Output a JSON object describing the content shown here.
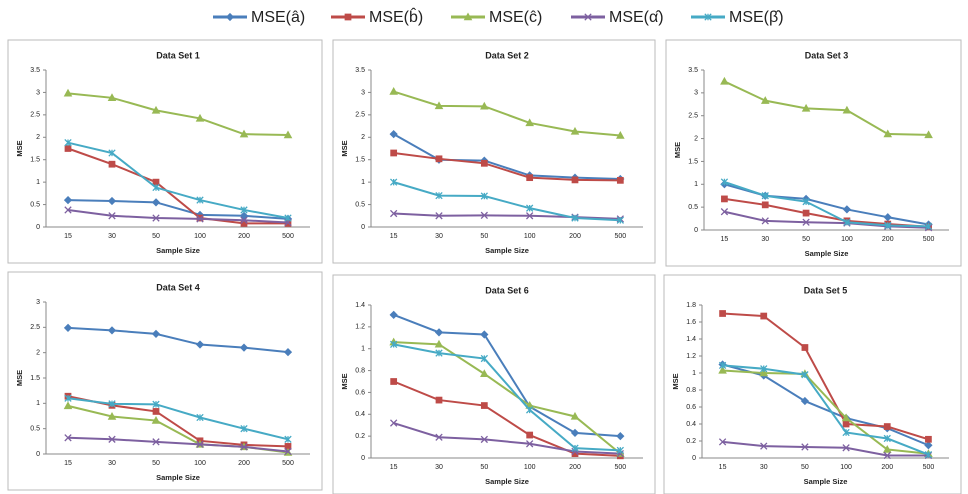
{
  "chart_data": [
    {
      "type": "line",
      "title": "Data Set 1",
      "x_label": "Sample Size",
      "y_label": "MSE",
      "categories": [
        "15",
        "30",
        "50",
        "100",
        "200",
        "500"
      ],
      "ylim": [
        0,
        3.5
      ],
      "yticks": [
        0,
        0.5,
        1,
        1.5,
        2,
        2.5,
        3,
        3.5
      ],
      "series": [
        {
          "name": "MSE(â)",
          "color": "#4a7ebb",
          "values": [
            0.6,
            0.58,
            0.55,
            0.27,
            0.25,
            0.18
          ]
        },
        {
          "name": "MSE(b̂)",
          "color": "#be4b48",
          "values": [
            1.75,
            1.4,
            1.0,
            0.2,
            0.08,
            0.08
          ]
        },
        {
          "name": "MSE(ĉ)",
          "color": "#98b954",
          "values": [
            2.98,
            2.88,
            2.6,
            2.42,
            2.07,
            2.05
          ]
        },
        {
          "name": "MSE(α̂)",
          "color": "#7d60a0",
          "values": [
            0.38,
            0.25,
            0.2,
            0.18,
            0.15,
            0.1
          ]
        },
        {
          "name": "MSE(β̂)",
          "color": "#46aac5",
          "values": [
            1.88,
            1.65,
            0.88,
            0.6,
            0.38,
            0.2
          ]
        }
      ]
    },
    {
      "type": "line",
      "title": "Data Set 2",
      "x_label": "Sample Size",
      "y_label": "MSE",
      "categories": [
        "15",
        "30",
        "50",
        "100",
        "200",
        "500"
      ],
      "ylim": [
        0,
        3.5
      ],
      "yticks": [
        0,
        0.5,
        1,
        1.5,
        2,
        2.5,
        3,
        3.5
      ],
      "series": [
        {
          "color": "#4a7ebb",
          "values": [
            2.07,
            1.5,
            1.48,
            1.15,
            1.1,
            1.07
          ]
        },
        {
          "color": "#be4b48",
          "values": [
            1.65,
            1.52,
            1.42,
            1.1,
            1.05,
            1.04
          ]
        },
        {
          "color": "#98b954",
          "values": [
            3.02,
            2.7,
            2.69,
            2.32,
            2.13,
            2.04
          ]
        },
        {
          "color": "#7d60a0",
          "values": [
            0.3,
            0.25,
            0.26,
            0.25,
            0.22,
            0.18
          ]
        },
        {
          "color": "#46aac5",
          "values": [
            1.0,
            0.7,
            0.69,
            0.42,
            0.2,
            0.15
          ]
        }
      ]
    },
    {
      "type": "line",
      "title": "Data Set 3",
      "x_label": "Sample Size",
      "y_label": "MSE",
      "categories": [
        "15",
        "30",
        "50",
        "100",
        "200",
        "500"
      ],
      "ylim": [
        0,
        3.5
      ],
      "yticks": [
        0,
        0.5,
        1,
        1.5,
        2,
        2.5,
        3,
        3.5
      ],
      "series": [
        {
          "color": "#4a7ebb",
          "values": [
            1.0,
            0.75,
            0.68,
            0.45,
            0.28,
            0.12
          ]
        },
        {
          "color": "#be4b48",
          "values": [
            0.68,
            0.55,
            0.37,
            0.2,
            0.13,
            0.07
          ]
        },
        {
          "color": "#98b954",
          "values": [
            3.25,
            2.83,
            2.66,
            2.62,
            2.1,
            2.08
          ]
        },
        {
          "color": "#7d60a0",
          "values": [
            0.4,
            0.2,
            0.17,
            0.15,
            0.08,
            0.05
          ]
        },
        {
          "color": "#46aac5",
          "values": [
            1.05,
            0.75,
            0.62,
            0.17,
            0.1,
            0.08
          ]
        }
      ]
    },
    {
      "type": "line",
      "title": "Data Set 4",
      "x_label": "Sample Size",
      "y_label": "MSE",
      "categories": [
        "15",
        "30",
        "50",
        "100",
        "200",
        "500"
      ],
      "ylim": [
        0,
        3
      ],
      "yticks": [
        0,
        0.5,
        1,
        1.5,
        2,
        2.5,
        3
      ],
      "series": [
        {
          "color": "#4a7ebb",
          "values": [
            2.49,
            2.44,
            2.37,
            2.16,
            2.1,
            2.01
          ]
        },
        {
          "color": "#be4b48",
          "values": [
            1.14,
            0.96,
            0.84,
            0.26,
            0.18,
            0.15
          ]
        },
        {
          "color": "#98b954",
          "values": [
            0.95,
            0.74,
            0.66,
            0.19,
            0.14,
            0.03
          ]
        },
        {
          "color": "#7d60a0",
          "values": [
            0.32,
            0.29,
            0.24,
            0.19,
            0.14,
            0.05
          ]
        },
        {
          "color": "#46aac5",
          "values": [
            1.1,
            0.99,
            0.98,
            0.72,
            0.5,
            0.29
          ]
        }
      ]
    },
    {
      "type": "line",
      "title": "Data Set 6",
      "x_label": "Sample Size",
      "y_label": "MSE",
      "categories": [
        "15",
        "30",
        "50",
        "100",
        "200",
        "500"
      ],
      "ylim": [
        0,
        1.4
      ],
      "yticks": [
        0,
        0.2,
        0.4,
        0.6,
        0.8,
        1,
        1.2,
        1.4
      ],
      "series": [
        {
          "color": "#4a7ebb",
          "values": [
            1.31,
            1.15,
            1.13,
            0.47,
            0.23,
            0.2
          ]
        },
        {
          "color": "#be4b48",
          "values": [
            0.7,
            0.53,
            0.48,
            0.21,
            0.04,
            0.02
          ]
        },
        {
          "color": "#98b954",
          "values": [
            1.06,
            1.04,
            0.77,
            0.48,
            0.38,
            0.04
          ]
        },
        {
          "color": "#7d60a0",
          "values": [
            0.32,
            0.19,
            0.17,
            0.13,
            0.06,
            0.04
          ]
        },
        {
          "color": "#46aac5",
          "values": [
            1.04,
            0.96,
            0.91,
            0.44,
            0.09,
            0.07
          ]
        }
      ]
    },
    {
      "type": "line",
      "title": "Data Set 5",
      "x_label": "Sample Size",
      "y_label": "MSE",
      "categories": [
        "15",
        "30",
        "50",
        "100",
        "200",
        "500"
      ],
      "ylim": [
        0,
        1.8
      ],
      "yticks": [
        0,
        0.2,
        0.4,
        0.6,
        0.8,
        1,
        1.2,
        1.4,
        1.6,
        1.8
      ],
      "series": [
        {
          "color": "#4a7ebb",
          "values": [
            1.1,
            0.97,
            0.67,
            0.47,
            0.35,
            0.15
          ]
        },
        {
          "color": "#be4b48",
          "values": [
            1.7,
            1.67,
            1.3,
            0.4,
            0.37,
            0.22
          ]
        },
        {
          "color": "#98b954",
          "values": [
            1.03,
            1.0,
            0.99,
            0.47,
            0.1,
            0.05
          ]
        },
        {
          "color": "#7d60a0",
          "values": [
            0.19,
            0.14,
            0.13,
            0.12,
            0.03,
            0.03
          ]
        },
        {
          "color": "#46aac5",
          "values": [
            1.09,
            1.05,
            0.98,
            0.3,
            0.23,
            0.04
          ]
        }
      ]
    }
  ]
}
